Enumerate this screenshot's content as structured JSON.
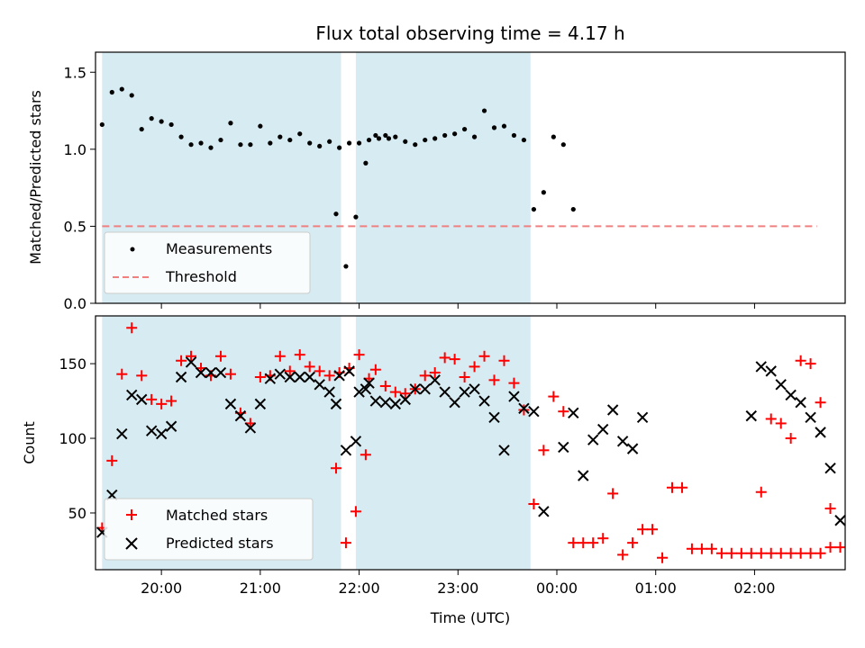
{
  "figure": {
    "title": "Flux total observing time = 4.17 h"
  },
  "chart_data": [
    {
      "type": "scatter",
      "ylabel": "Matched/Predicted stars",
      "xlabel": "",
      "xlim": [
        "19:20",
        "02:55"
      ],
      "ylim": [
        0,
        1.63
      ],
      "yticks": [
        0.0,
        0.5,
        1.0,
        1.5
      ],
      "ytick_labels": [
        "0.0",
        "0.5",
        "1.0",
        "1.5"
      ],
      "grid": false,
      "legend": "lower-left",
      "shaded_intervals": [
        [
          "19:24",
          "21:49"
        ],
        [
          "21:58",
          "23:44"
        ]
      ],
      "series": [
        {
          "name": "Measurements",
          "marker": "dot",
          "color": "#000000",
          "points": [
            [
              "19:24",
              1.16
            ],
            [
              "19:30",
              1.37
            ],
            [
              "19:36",
              1.39
            ],
            [
              "19:42",
              1.35
            ],
            [
              "19:48",
              1.13
            ],
            [
              "19:54",
              1.2
            ],
            [
              "20:00",
              1.18
            ],
            [
              "20:06",
              1.16
            ],
            [
              "20:12",
              1.08
            ],
            [
              "20:18",
              1.03
            ],
            [
              "20:24",
              1.04
            ],
            [
              "20:30",
              1.01
            ],
            [
              "20:36",
              1.06
            ],
            [
              "20:42",
              1.17
            ],
            [
              "20:48",
              1.03
            ],
            [
              "20:54",
              1.03
            ],
            [
              "21:00",
              1.15
            ],
            [
              "21:06",
              1.04
            ],
            [
              "21:12",
              1.08
            ],
            [
              "21:18",
              1.06
            ],
            [
              "21:24",
              1.1
            ],
            [
              "21:30",
              1.04
            ],
            [
              "21:36",
              1.02
            ],
            [
              "21:42",
              1.05
            ],
            [
              "21:48",
              1.01
            ],
            [
              "21:54",
              1.04
            ],
            [
              "22:00",
              1.04
            ],
            [
              "22:06",
              1.06
            ],
            [
              "22:12",
              1.07
            ],
            [
              "22:18",
              1.07
            ],
            [
              "21:46",
              0.58
            ],
            [
              "21:52",
              0.24
            ],
            [
              "21:58",
              0.56
            ],
            [
              "22:04",
              0.91
            ],
            [
              "22:10",
              1.09
            ],
            [
              "22:16",
              1.09
            ],
            [
              "22:22",
              1.08
            ],
            [
              "22:28",
              1.05
            ],
            [
              "22:34",
              1.03
            ],
            [
              "22:40",
              1.06
            ],
            [
              "22:46",
              1.07
            ],
            [
              "22:52",
              1.09
            ],
            [
              "22:58",
              1.1
            ],
            [
              "23:04",
              1.13
            ],
            [
              "23:10",
              1.08
            ],
            [
              "23:16",
              1.25
            ],
            [
              "23:22",
              1.14
            ],
            [
              "23:28",
              1.15
            ],
            [
              "23:34",
              1.09
            ],
            [
              "23:40",
              1.06
            ],
            [
              "23:46",
              0.61
            ],
            [
              "23:52",
              0.72
            ],
            [
              "23:58",
              1.08
            ],
            [
              "00:04",
              1.03
            ],
            [
              "00:10",
              0.61
            ]
          ]
        },
        {
          "name": "Threshold",
          "style": "dashed",
          "color": "#f08080",
          "points": [
            [
              "19:24",
              0.5
            ],
            [
              "02:38",
              0.5
            ]
          ]
        }
      ]
    },
    {
      "type": "scatter",
      "ylabel": "Count",
      "xlabel": "Time (UTC)",
      "xlim": [
        "19:20",
        "02:55"
      ],
      "ylim": [
        12,
        182
      ],
      "yticks": [
        50,
        100,
        150
      ],
      "xticks": [
        "20:00",
        "21:00",
        "22:00",
        "23:00",
        "00:00",
        "01:00",
        "02:00"
      ],
      "grid": false,
      "legend": "lower-left",
      "shaded_intervals": [
        [
          "19:24",
          "21:49"
        ],
        [
          "21:58",
          "23:44"
        ]
      ],
      "series": [
        {
          "name": "Matched stars",
          "marker": "plus",
          "color": "#ff0000",
          "points": [
            [
              "19:24",
              40
            ],
            [
              "19:30",
              85
            ],
            [
              "19:36",
              143
            ],
            [
              "19:42",
              174
            ],
            [
              "19:48",
              142
            ],
            [
              "19:54",
              126
            ],
            [
              "20:00",
              123
            ],
            [
              "20:06",
              125
            ],
            [
              "20:12",
              152
            ],
            [
              "20:18",
              155
            ],
            [
              "20:24",
              147
            ],
            [
              "20:30",
              142
            ],
            [
              "20:36",
              155
            ],
            [
              "20:42",
              143
            ],
            [
              "20:48",
              117
            ],
            [
              "20:54",
              110
            ],
            [
              "21:00",
              141
            ],
            [
              "21:06",
              142
            ],
            [
              "21:12",
              155
            ],
            [
              "21:18",
              145
            ],
            [
              "21:24",
              156
            ],
            [
              "21:30",
              148
            ],
            [
              "21:36",
              145
            ],
            [
              "21:42",
              142
            ],
            [
              "21:48",
              144
            ],
            [
              "21:54",
              147
            ],
            [
              "22:00",
              156
            ],
            [
              "22:06",
              140
            ],
            [
              "21:46",
              80
            ],
            [
              "21:52",
              30
            ],
            [
              "21:58",
              51
            ],
            [
              "22:04",
              89
            ],
            [
              "22:10",
              146
            ],
            [
              "22:16",
              135
            ],
            [
              "22:22",
              131
            ],
            [
              "22:28",
              130
            ],
            [
              "22:34",
              133
            ],
            [
              "22:40",
              142
            ],
            [
              "22:46",
              144
            ],
            [
              "22:52",
              154
            ],
            [
              "22:58",
              153
            ],
            [
              "23:04",
              141
            ],
            [
              "23:10",
              148
            ],
            [
              "23:16",
              155
            ],
            [
              "23:22",
              139
            ],
            [
              "23:28",
              152
            ],
            [
              "23:34",
              137
            ],
            [
              "23:40",
              119
            ],
            [
              "23:46",
              56
            ],
            [
              "23:52",
              92
            ],
            [
              "23:58",
              128
            ],
            [
              "00:04",
              118
            ],
            [
              "00:10",
              30
            ],
            [
              "00:16",
              30
            ],
            [
              "00:22",
              30
            ],
            [
              "00:28",
              33
            ],
            [
              "00:34",
              63
            ],
            [
              "00:40",
              22
            ],
            [
              "00:46",
              30
            ],
            [
              "00:52",
              39
            ],
            [
              "00:58",
              39
            ],
            [
              "01:04",
              20
            ],
            [
              "01:10",
              67
            ],
            [
              "01:16",
              67
            ],
            [
              "01:22",
              26
            ],
            [
              "01:28",
              26
            ],
            [
              "01:34",
              26
            ],
            [
              "01:40",
              23
            ],
            [
              "01:46",
              23
            ],
            [
              "01:52",
              23
            ],
            [
              "01:58",
              23
            ],
            [
              "02:04",
              23
            ],
            [
              "02:10",
              23
            ],
            [
              "02:16",
              23
            ],
            [
              "02:22",
              23
            ],
            [
              "02:28",
              23
            ],
            [
              "02:34",
              23
            ],
            [
              "02:40",
              23
            ],
            [
              "02:46",
              27
            ],
            [
              "02:52",
              27
            ],
            [
              "02:04",
              64
            ],
            [
              "02:10",
              113
            ],
            [
              "02:16",
              110
            ],
            [
              "02:22",
              100
            ],
            [
              "02:28",
              152
            ],
            [
              "02:34",
              150
            ],
            [
              "02:40",
              124
            ],
            [
              "02:46",
              53
            ]
          ]
        },
        {
          "name": "Predicted stars",
          "marker": "x",
          "color": "#000000",
          "points": [
            [
              "19:24",
              37
            ],
            [
              "19:30",
              62
            ],
            [
              "19:36",
              103
            ],
            [
              "19:42",
              129
            ],
            [
              "19:48",
              126
            ],
            [
              "19:54",
              105
            ],
            [
              "20:00",
              103
            ],
            [
              "20:06",
              108
            ],
            [
              "20:12",
              141
            ],
            [
              "20:18",
              151
            ],
            [
              "20:24",
              144
            ],
            [
              "20:30",
              144
            ],
            [
              "20:36",
              144
            ],
            [
              "20:42",
              123
            ],
            [
              "20:48",
              115
            ],
            [
              "20:54",
              107
            ],
            [
              "21:00",
              123
            ],
            [
              "21:06",
              140
            ],
            [
              "21:12",
              143
            ],
            [
              "21:18",
              141
            ],
            [
              "21:24",
              141
            ],
            [
              "21:30",
              141
            ],
            [
              "21:36",
              136
            ],
            [
              "21:42",
              131
            ],
            [
              "21:48",
              142
            ],
            [
              "21:54",
              145
            ],
            [
              "22:00",
              131
            ],
            [
              "22:06",
              137
            ],
            [
              "21:46",
              123
            ],
            [
              "21:52",
              92
            ],
            [
              "21:58",
              98
            ],
            [
              "22:04",
              133
            ],
            [
              "22:10",
              125
            ],
            [
              "22:16",
              124
            ],
            [
              "22:22",
              123
            ],
            [
              "22:28",
              126
            ],
            [
              "22:34",
              133
            ],
            [
              "22:40",
              133
            ],
            [
              "22:46",
              139
            ],
            [
              "22:52",
              131
            ],
            [
              "22:58",
              124
            ],
            [
              "23:04",
              131
            ],
            [
              "23:10",
              133
            ],
            [
              "23:16",
              125
            ],
            [
              "23:22",
              114
            ],
            [
              "23:28",
              92
            ],
            [
              "23:34",
              128
            ],
            [
              "23:40",
              120
            ],
            [
              "23:46",
              118
            ],
            [
              "23:52",
              51
            ],
            [
              "00:04",
              94
            ],
            [
              "00:10",
              117
            ],
            [
              "00:16",
              75
            ],
            [
              "00:22",
              99
            ],
            [
              "00:28",
              106
            ],
            [
              "00:34",
              119
            ],
            [
              "00:40",
              98
            ],
            [
              "00:46",
              93
            ],
            [
              "00:52",
              114
            ],
            [
              "01:58",
              115
            ],
            [
              "02:04",
              148
            ],
            [
              "02:10",
              145
            ],
            [
              "02:16",
              136
            ],
            [
              "02:22",
              129
            ],
            [
              "02:28",
              124
            ],
            [
              "02:34",
              114
            ],
            [
              "02:40",
              104
            ],
            [
              "02:46",
              80
            ],
            [
              "02:52",
              45
            ]
          ]
        }
      ]
    }
  ]
}
